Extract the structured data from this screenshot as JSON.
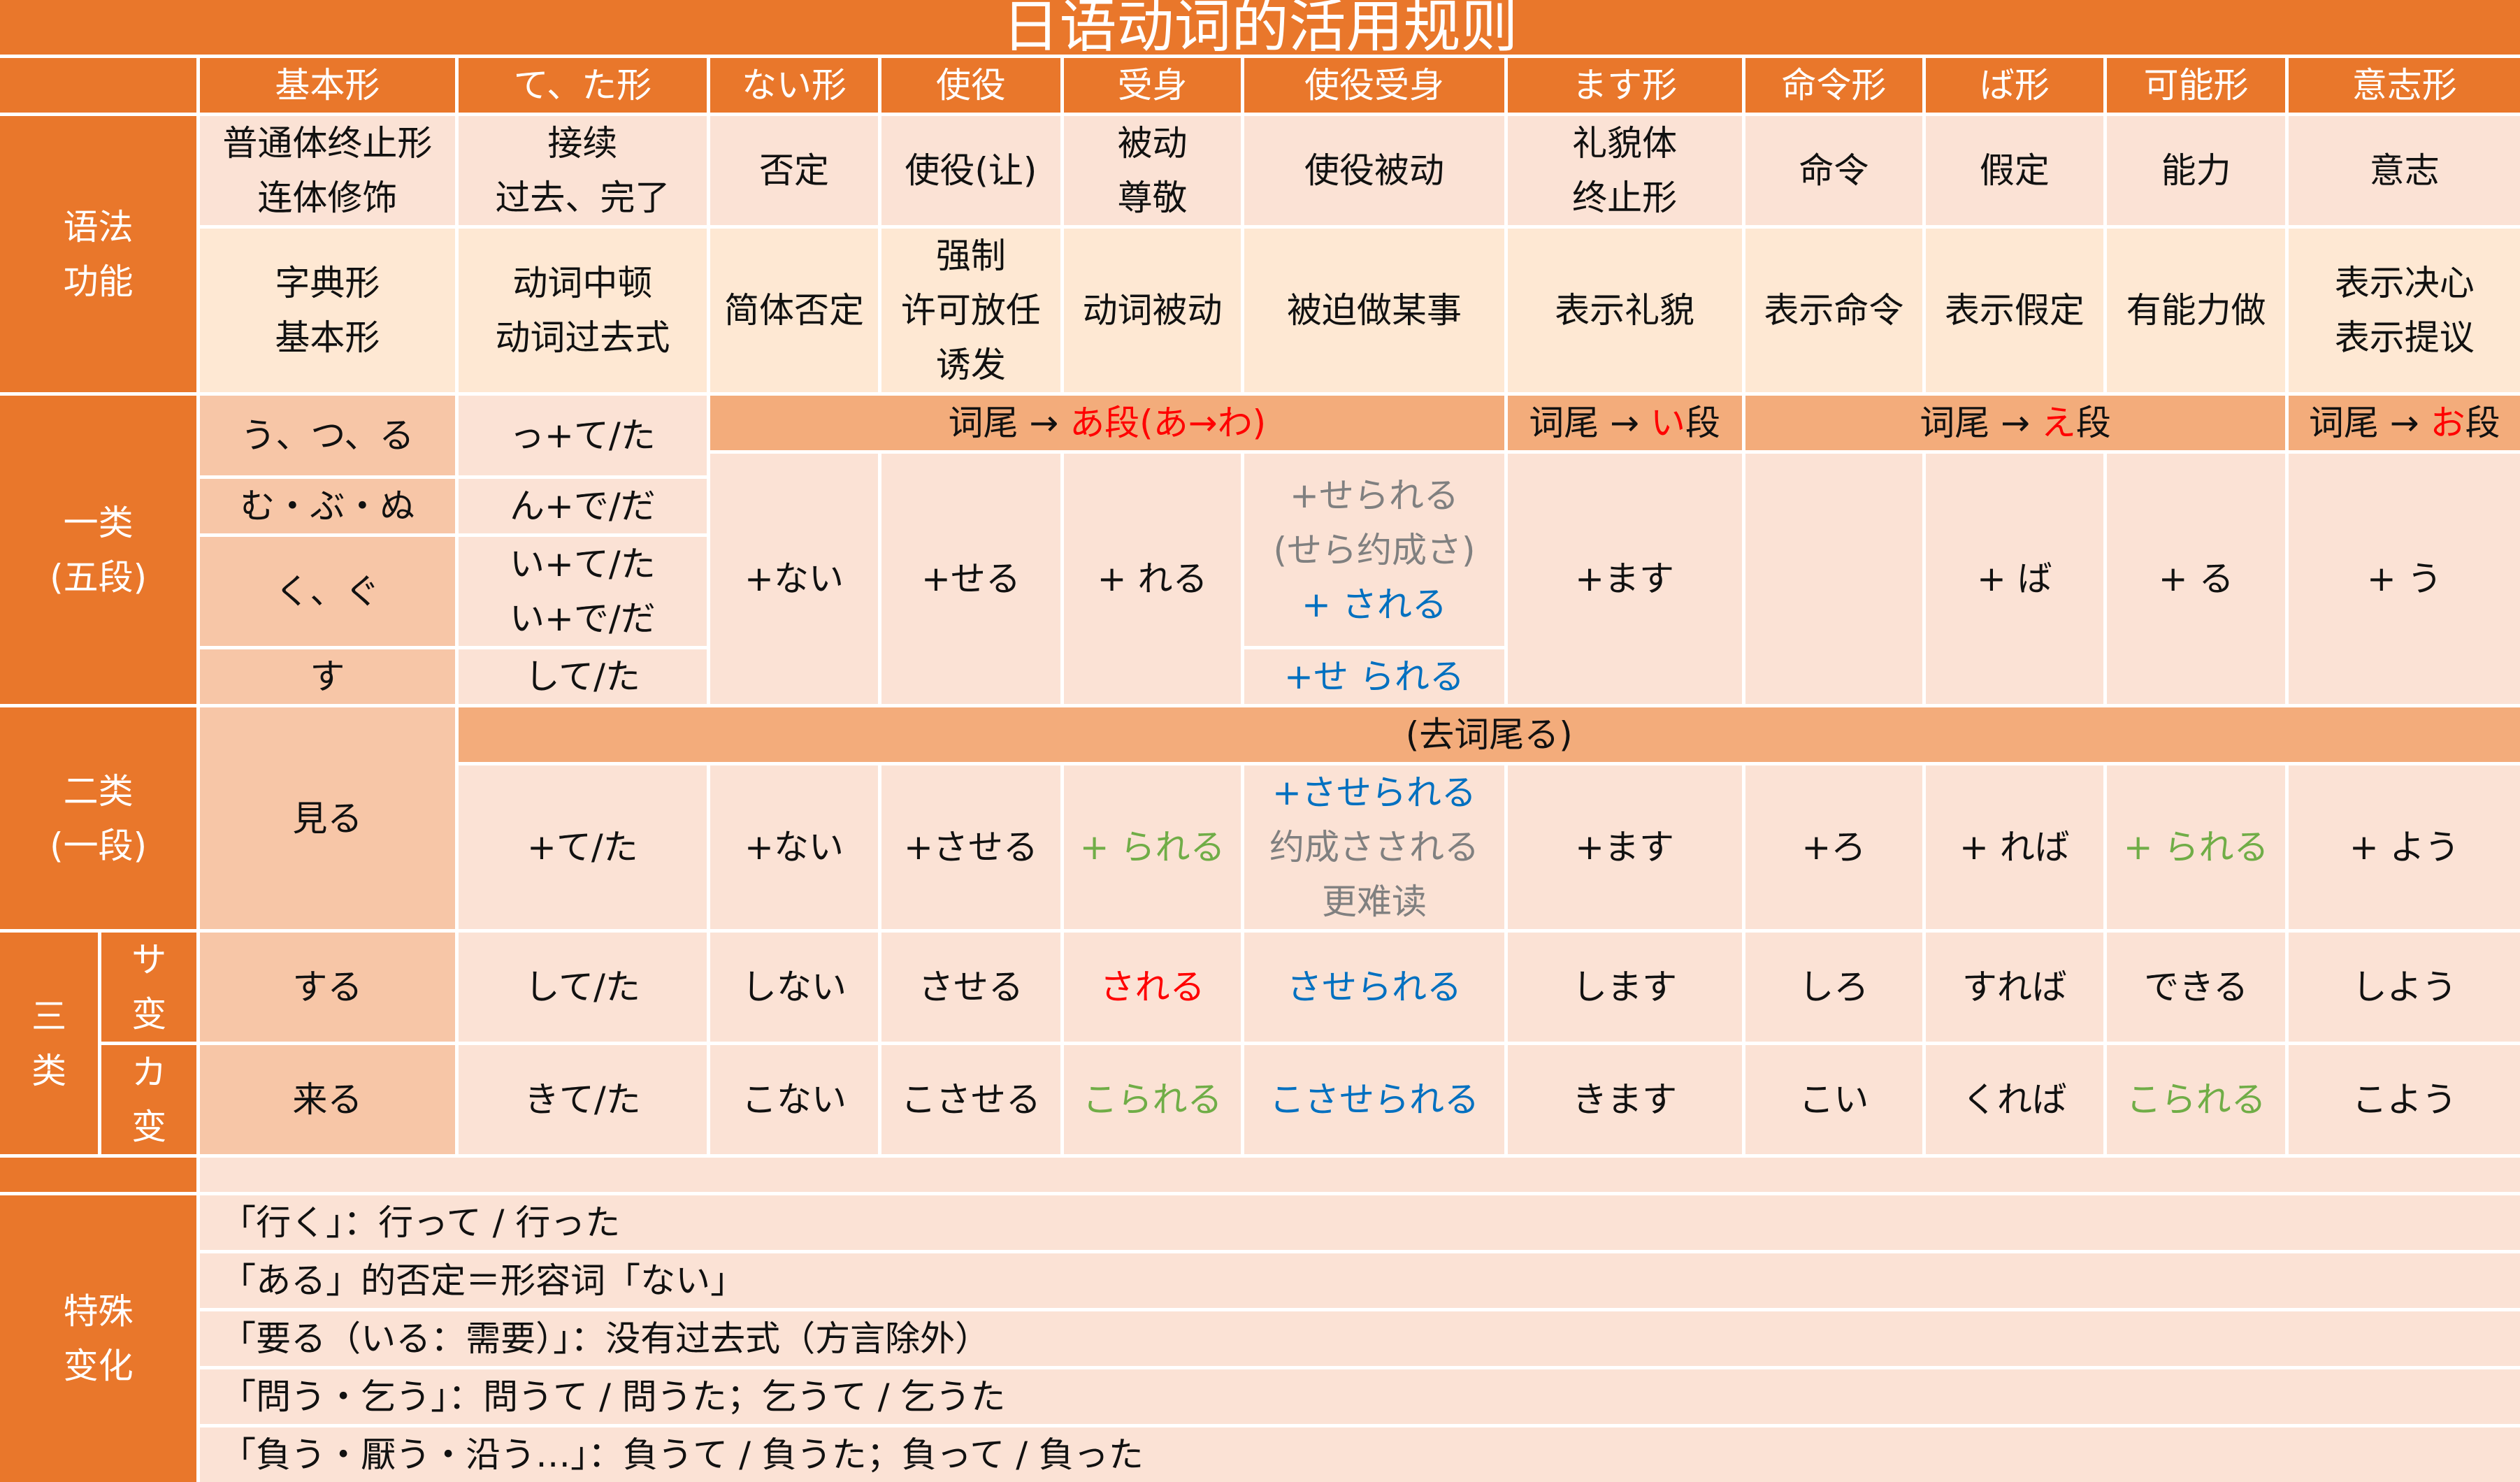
{
  "title": "日语动词的活用规则",
  "headers": [
    "基本形",
    "て、た形",
    "ない形",
    "使役",
    "受身",
    "使役受身",
    "ます形",
    "命令形",
    "ば形",
    "可能形",
    "意志形"
  ],
  "grammar_label": "语法\n功能",
  "function_row1": [
    "普通体终止形\n连体修饰",
    "接续\n过去、完了",
    "否定",
    "使役(让)",
    "被动\n尊敬",
    "使役被动",
    "礼貌体\n终止形",
    "命令",
    "假定",
    "能力",
    "意志"
  ],
  "function_row2": [
    "字典形\n基本形",
    "动词中顿\n动词过去式",
    "简体否定",
    "强制\n许可放任\n诱发",
    "动词被动",
    "被迫做某事",
    "表示礼貌",
    "表示命令",
    "表示假定",
    "有能力做",
    "表示决心\n表示提议"
  ],
  "group1": {
    "label": "一类\n(五段)",
    "endings": [
      "う、つ、る",
      "む・ぶ・ぬ",
      "く、ぐ",
      "す"
    ],
    "te_forms": [
      "っ+て/た",
      "ん+で/だ",
      "い+て/た\nい+で/だ",
      "して/た"
    ],
    "bars": [
      {
        "prefix": "词尾 → ",
        "highlight": "あ段(あ→わ)"
      },
      {
        "prefix": "词尾 → ",
        "highlight": "い",
        "suffix": "段"
      },
      {
        "prefix": "词尾 → ",
        "highlight": "え",
        "suffix": "段"
      },
      {
        "prefix": "词尾 → ",
        "highlight": "お",
        "suffix": "段"
      }
    ],
    "nai": "+ない",
    "shieki": "+せる",
    "ukemi": "+ れる",
    "shieki_ukemi": {
      "line1": "+せられる",
      "line2": "(せら约成さ)",
      "line3": "+ される",
      "line4": "+せ られる"
    },
    "masu": "+ます",
    "meirei": "",
    "ba": "+ ば",
    "kanou": "+ る",
    "ishi": "+ う"
  },
  "group2": {
    "label": "二类\n(一段)",
    "example": "見る",
    "bar": "(去词尾る)",
    "te": "+て/た",
    "nai": "+ない",
    "shieki": "+させる",
    "ukemi": "+ られる",
    "shieki_ukemi": {
      "line1": "+させられる",
      "line2": "约成さされる",
      "line3": "更难读"
    },
    "masu": "+ます",
    "meirei": "+ろ",
    "ba": "+ れば",
    "kanou": "+ られる",
    "ishi": "+ よう"
  },
  "group3": {
    "label": "三\n类",
    "sahen": {
      "label": "サ\n变",
      "forms": [
        "する",
        "して/た",
        "しない",
        "させる",
        "される",
        "させられる",
        "します",
        "しろ",
        "すれば",
        "できる",
        "しよう"
      ]
    },
    "kahen": {
      "label": "カ\n变",
      "forms": [
        "来る",
        "きて/た",
        "こない",
        "こさせる",
        "こられる",
        "こさせられる",
        "きます",
        "こい",
        "くれば",
        "こられる",
        "こよう"
      ]
    }
  },
  "special": {
    "label": "特殊\n变化",
    "lines": [
      "「行く」：行って / 行った",
      "「ある」的否定＝形容词「ない」",
      "「要る（いる：需要）」：没有过去式（方言除外）",
      "「問う・乞う」：問うて / 問うた；乞うて / 乞うた",
      "「負う・厭う・沿う…」：負うて / 負うた；負って / 負った"
    ]
  },
  "colors": {
    "orange": "#E9772B",
    "peach": "#FBE2D5",
    "peach_light": "#FEE8D3",
    "peach_mid": "#F7C6A7",
    "bar": "#F3AC7B",
    "red": "#FF0000",
    "blue": "#0070C0",
    "green": "#70AD47",
    "gray": "#808080"
  }
}
